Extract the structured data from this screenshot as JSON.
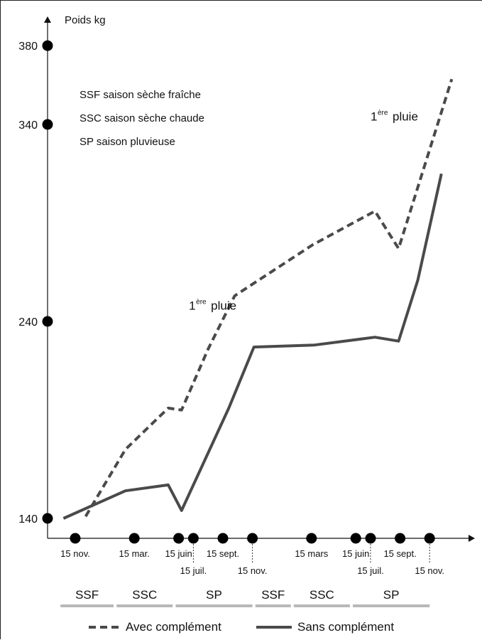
{
  "chart_data": {
    "type": "line",
    "ylabel": "Poids kg",
    "ylim": [
      140,
      380
    ],
    "yticks": [
      140,
      240,
      340,
      380
    ],
    "legend_notes": [
      "SSF saison sèche fraîche",
      "SSC saison sèche chaude",
      "SP saison pluvieuse"
    ],
    "x_dates": [
      {
        "label": "15 nov.",
        "offset_months": 0,
        "row": 0
      },
      {
        "label": "15 mar.",
        "offset_months": 4,
        "row": 0
      },
      {
        "label": "15 juin",
        "offset_months": 7,
        "row": 0
      },
      {
        "label": "15 juil.",
        "offset_months": 8,
        "row": 1
      },
      {
        "label": "15 sept.",
        "offset_months": 10,
        "row": 0
      },
      {
        "label": "15 nov.",
        "offset_months": 12,
        "row": 1
      },
      {
        "label": "15 mars",
        "offset_months": 16,
        "row": 0
      },
      {
        "label": "15 juin",
        "offset_months": 19,
        "row": 0
      },
      {
        "label": "15 juil.",
        "offset_months": 20,
        "row": 1
      },
      {
        "label": "15 sept.",
        "offset_months": 22,
        "row": 0
      },
      {
        "label": "15 nov.",
        "offset_months": 24,
        "row": 1
      }
    ],
    "seasons": [
      {
        "label": "SSF",
        "from": -1,
        "to": 2.6
      },
      {
        "label": "SSC",
        "from": 2.8,
        "to": 6.6
      },
      {
        "label": "SP",
        "from": 6.8,
        "to": 12
      },
      {
        "label": "SSF",
        "from": 12.2,
        "to": 14.6
      },
      {
        "label": "SSC",
        "from": 14.8,
        "to": 18.6
      },
      {
        "label": "SP",
        "from": 18.8,
        "to": 24
      }
    ],
    "series": [
      {
        "name": "Avec complément",
        "style": "dashed",
        "points": [
          [
            0.7,
            141
          ],
          [
            3.4,
            175
          ],
          [
            6.3,
            196
          ],
          [
            7.2,
            195
          ],
          [
            9.0,
            226
          ],
          [
            10.8,
            253
          ],
          [
            16.1,
            279
          ],
          [
            20.3,
            296
          ],
          [
            21.9,
            277
          ],
          [
            25.5,
            363
          ]
        ]
      },
      {
        "name": "Sans complément",
        "style": "solid",
        "points": [
          [
            -0.8,
            140
          ],
          [
            3.4,
            154
          ],
          [
            6.3,
            157
          ],
          [
            7.2,
            144
          ],
          [
            10.4,
            196
          ],
          [
            12.1,
            227
          ],
          [
            16.2,
            228
          ],
          [
            20.3,
            232
          ],
          [
            21.9,
            230
          ],
          [
            23.2,
            261
          ],
          [
            24.8,
            315
          ]
        ]
      }
    ],
    "annotations": [
      {
        "sup": "ère",
        "text": "pluie",
        "at": [
          7.7,
          246
        ]
      },
      {
        "sup": "ère",
        "text": "pluie",
        "at": [
          20.0,
          342
        ]
      }
    ],
    "annotation_prefix": "1",
    "legend_placement": "bottom",
    "grid": false,
    "colors": {
      "series": "#4a4a4a",
      "season_bar": "#b8b8b8",
      "axis": "#111111"
    }
  }
}
